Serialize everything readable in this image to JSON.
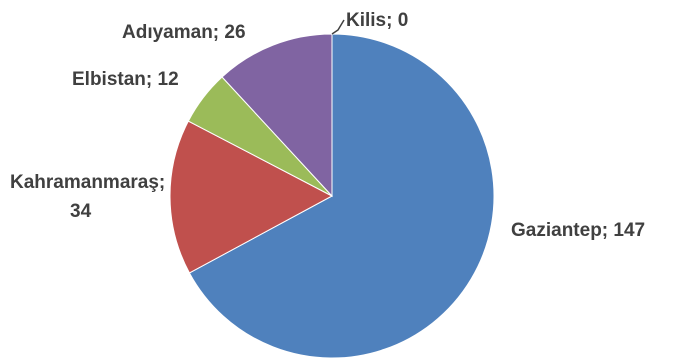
{
  "chart_data": {
    "type": "pie",
    "title": "",
    "slices": [
      {
        "label": "Gaziantep; 147",
        "category": "Gaziantep",
        "value": 147,
        "color": "#4f81bd"
      },
      {
        "label": "Kahramanmaraş; 34",
        "category": "Kahramanmaraş",
        "value": 34,
        "color": "#c0504d"
      },
      {
        "label": "Elbistan; 12",
        "category": "Elbistan",
        "value": 12,
        "color": "#9bbb59"
      },
      {
        "label": "Adıyaman; 26",
        "category": "Adıyaman",
        "value": 26,
        "color": "#8064a2"
      },
      {
        "label": "Kilis; 0",
        "category": "Kilis",
        "value": 0,
        "color": "#4bacc6"
      }
    ],
    "label_color": "#404040",
    "legend": "none"
  }
}
